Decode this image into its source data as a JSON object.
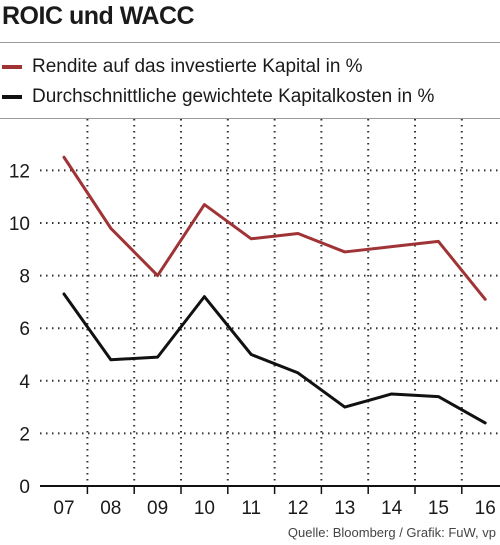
{
  "title": "ROIC und WACC",
  "source": "Quelle: Bloomberg / Grafik: FuW, vp",
  "colors": {
    "roic": "#a03335",
    "wacc": "#111111",
    "grid": "#333333"
  },
  "chart_data": {
    "type": "line",
    "title": "ROIC und WACC",
    "categories": [
      "07",
      "08",
      "09",
      "10",
      "11",
      "12",
      "13",
      "14",
      "15",
      "16"
    ],
    "ylim": [
      0,
      13
    ],
    "yticks": [
      0,
      2,
      4,
      6,
      8,
      10,
      12
    ],
    "grid": true,
    "legend_position": "top",
    "series": [
      {
        "name": "Rendite auf das investierte Kapital in %",
        "color": "#a03335",
        "values": [
          12.5,
          9.8,
          8.0,
          10.7,
          9.4,
          9.6,
          8.9,
          9.1,
          9.3,
          7.1
        ]
      },
      {
        "name": "Durchschnittliche gewichtete Kapitalkosten in %",
        "color": "#111111",
        "values": [
          7.3,
          4.8,
          4.9,
          7.2,
          5.0,
          4.3,
          3.0,
          3.5,
          3.4,
          2.4
        ]
      }
    ]
  }
}
